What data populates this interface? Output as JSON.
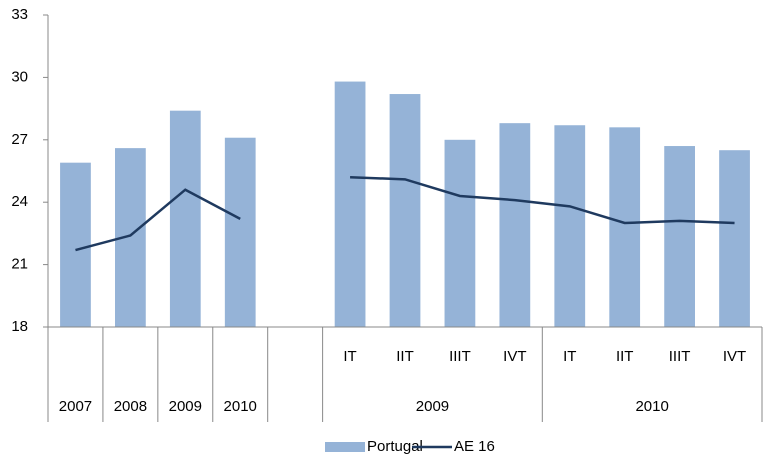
{
  "chart_data": {
    "type": "bar+line",
    "categories": [
      null,
      null,
      null,
      null,
      null,
      "IT",
      "IIT",
      "IIIT",
      "IVT",
      "IT",
      "IIT",
      "IIIT",
      "IVT"
    ],
    "groups": [
      {
        "label": "2007",
        "start": 0,
        "end": 0
      },
      {
        "label": "2008",
        "start": 1,
        "end": 1
      },
      {
        "label": "2009",
        "start": 2,
        "end": 2
      },
      {
        "label": "2010",
        "start": 3,
        "end": 3
      },
      {
        "label": "2009",
        "start": 5,
        "end": 8
      },
      {
        "label": "2010",
        "start": 9,
        "end": 12
      }
    ],
    "series": [
      {
        "name": "Portugal",
        "type": "bar",
        "color": "#95b3d7",
        "values": [
          25.9,
          26.6,
          28.4,
          27.1,
          null,
          29.8,
          29.2,
          27.0,
          27.8,
          27.7,
          27.6,
          26.7,
          26.5
        ]
      },
      {
        "name": "AE 16",
        "type": "line",
        "color": "#1f3a5f",
        "values": [
          21.7,
          22.4,
          24.6,
          23.2,
          null,
          25.2,
          25.1,
          24.3,
          24.1,
          23.8,
          23.0,
          23.1,
          23.0
        ]
      }
    ],
    "ylim": [
      18,
      33
    ],
    "yticks": [
      18,
      21,
      24,
      27,
      30,
      33
    ],
    "grid": false,
    "legend": "bottom"
  }
}
